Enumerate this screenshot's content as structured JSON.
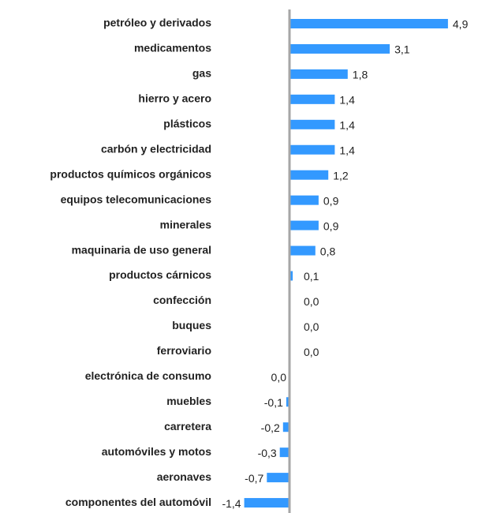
{
  "chart_data": {
    "type": "hbar",
    "categories": [
      "petróleo y derivados",
      "medicamentos",
      "gas",
      "hierro y acero",
      "plásticos",
      "carbón y electricidad",
      "productos químicos orgánicos",
      "equipos telecomunicaciones",
      "minerales",
      "maquinaria de uso general",
      "productos cárnicos",
      "confección",
      "buques",
      "ferroviario",
      "electrónica de consumo",
      "muebles",
      "carretera",
      "automóviles y motos",
      "aeronaves",
      "componentes del automóvil"
    ],
    "values": [
      4.9,
      3.1,
      1.8,
      1.4,
      1.4,
      1.4,
      1.2,
      0.9,
      0.9,
      0.8,
      0.1,
      0.0,
      0.0,
      0.0,
      -0.0,
      -0.1,
      -0.2,
      -0.3,
      -0.7,
      -1.4
    ],
    "value_labels": [
      "4,9",
      "3,1",
      "1,8",
      "1,4",
      "1,4",
      "1,4",
      "1,2",
      "0,9",
      "0,9",
      "0,8",
      "0,1",
      "0,0",
      "0,0",
      "0,0",
      "0,0",
      "-0,1",
      "-0,2",
      "-0,3",
      "-0,7",
      "-1,4"
    ],
    "color": "#3399ff",
    "xlim": [
      -1.5,
      5.0
    ]
  }
}
